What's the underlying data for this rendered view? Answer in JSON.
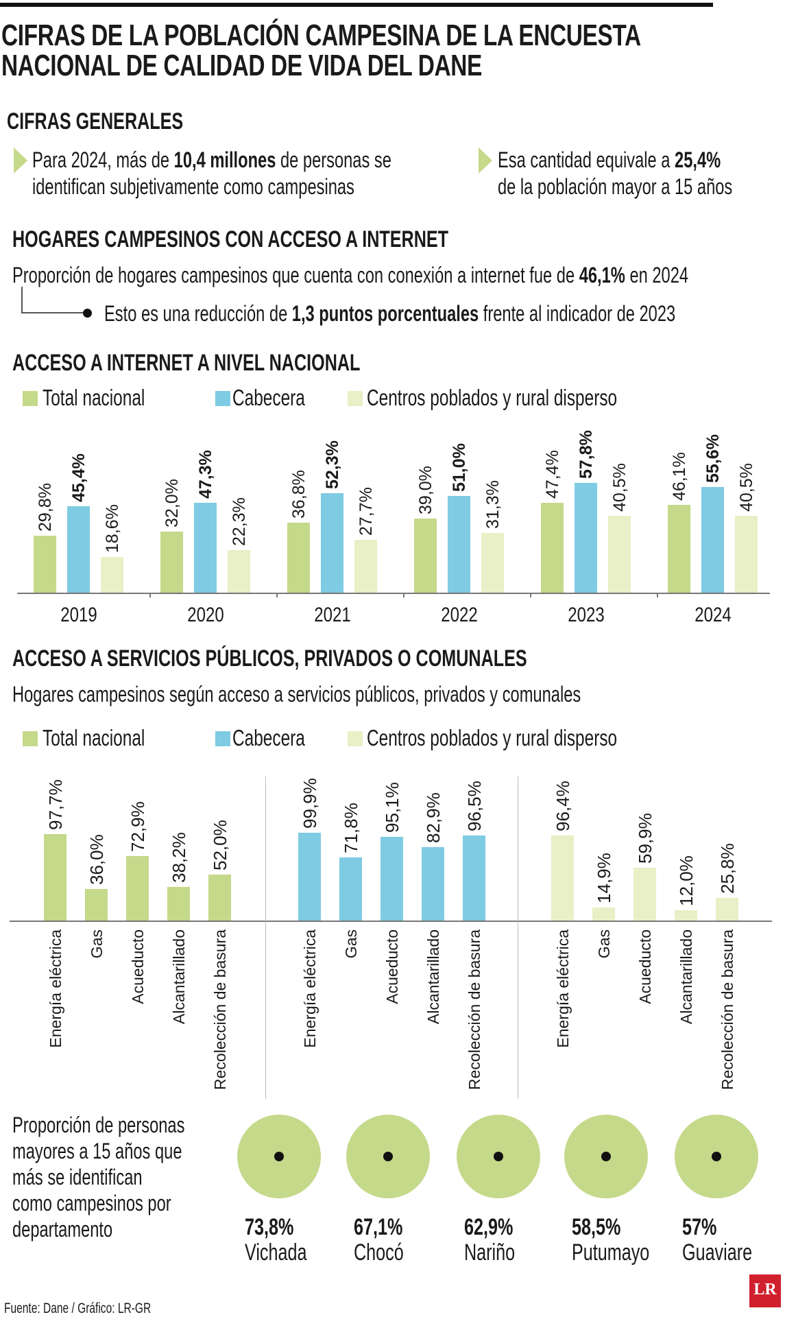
{
  "title_lines": [
    "CIFRAS DE LA POBLACIÓN CAMPESINA DE LA ENCUESTA",
    "NACIONAL DE CALIDAD DE VIDA DEL DANE"
  ],
  "general": {
    "heading": "CIFRAS GENERALES",
    "left": {
      "pre": "Para 2024, más de ",
      "bold": "10,4 millones",
      "post": " de personas se",
      "line2": "identifican subjetivamente como campesinas"
    },
    "right": {
      "pre": "Esa cantidad equivale a ",
      "bold": "25,4%",
      "line2": "de la población mayor a 15 años"
    }
  },
  "internet_households": {
    "heading": "HOGARES CAMPESINOS CON ACCESO A INTERNET",
    "line1": {
      "pre": "Proporción de hogares campesinos que cuenta con conexión a internet fue de ",
      "bold": "46,1%",
      "post": " en 2024"
    },
    "line2": {
      "pre": "Esto es una reducción de ",
      "bold": "1,3 puntos porcentuales",
      "post": " frente al indicador de 2023"
    }
  },
  "legend": [
    "Total nacional",
    "Cabecera",
    "Centros poblados y rural disperso"
  ],
  "colors": {
    "total": "#c5d98a",
    "cabecera": "#7ecbe3",
    "rural": "#e9efc6",
    "circle": "#c5d98a",
    "logo": "#d0202e"
  },
  "chart_data": [
    {
      "type": "bar",
      "title": "ACCESO A INTERNET A NIVEL NACIONAL",
      "categories": [
        "2019",
        "2020",
        "2021",
        "2022",
        "2023",
        "2024"
      ],
      "series": [
        {
          "name": "Total nacional",
          "values": [
            29.8,
            32.0,
            36.8,
            39.0,
            47.4,
            46.1
          ],
          "labels": [
            "29,8%",
            "32,0%",
            "36,8%",
            "39,0%",
            "47,4%",
            "46,1%"
          ]
        },
        {
          "name": "Cabecera",
          "values": [
            45.4,
            47.3,
            52.3,
            51.0,
            57.8,
            55.6
          ],
          "labels": [
            "45,4%",
            "47,3%",
            "52,3%",
            "51,0%",
            "57,8%",
            "55,6%"
          ]
        },
        {
          "name": "Centros poblados y rural disperso",
          "values": [
            18.6,
            22.3,
            27.7,
            31.3,
            40.5,
            40.5
          ],
          "labels": [
            "18,6%",
            "22,3%",
            "27,7%",
            "31,3%",
            "40,5%",
            "40,5%"
          ]
        }
      ],
      "legend": "top-left",
      "grid": false
    },
    {
      "type": "bar",
      "title": "ACCESO A SERVICIOS PÚBLICOS, PRIVADOS O COMUNALES",
      "subtitle": "Hogares campesinos según acceso a servicios públicos, privados y comunales",
      "categories": [
        "Energía eléctrica",
        "Gas",
        "Acueducto",
        "Alcantarillado",
        "Recolección de basura"
      ],
      "series": [
        {
          "name": "Total nacional",
          "values": [
            97.7,
            36.0,
            72.9,
            38.2,
            52.0
          ],
          "labels": [
            "97,7%",
            "36,0%",
            "72,9%",
            "38,2%",
            "52,0%"
          ]
        },
        {
          "name": "Cabecera",
          "values": [
            99.9,
            71.8,
            95.1,
            82.9,
            96.5
          ],
          "labels": [
            "99,9%",
            "71,8%",
            "95,1%",
            "82,9%",
            "96,5%"
          ]
        },
        {
          "name": "Centros poblados y rural disperso",
          "values": [
            96.4,
            14.9,
            59.9,
            12.0,
            25.8
          ],
          "labels": [
            "96,4%",
            "14,9%",
            "59,9%",
            "12,0%",
            "25,8%"
          ]
        }
      ],
      "legend": "top-left",
      "grid": false
    }
  ],
  "departments": {
    "caption_lines": [
      "Proporción de personas",
      "mayores a 15 años que",
      "más se identifican",
      "como campesinos por",
      "departamento"
    ],
    "items": [
      {
        "pct": "73,8%",
        "name": "Vichada"
      },
      {
        "pct": "67,1%",
        "name": "Chocó"
      },
      {
        "pct": "62,9%",
        "name": "Nariño"
      },
      {
        "pct": "58,5%",
        "name": "Putumayo"
      },
      {
        "pct": "57%",
        "name": "Guaviare"
      }
    ]
  },
  "footer": {
    "source": "Fuente: Dane / Gráfico: LR-GR",
    "logo": "LR"
  }
}
